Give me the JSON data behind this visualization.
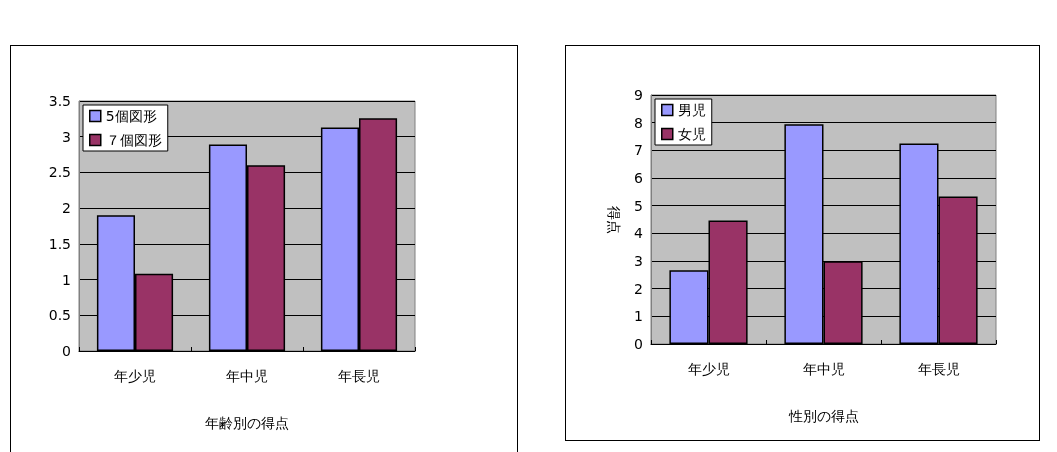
{
  "chart_data": [
    {
      "type": "bar",
      "xlabel": "年齢別の得点",
      "categories": [
        "年少児",
        "年中児",
        "年長児"
      ],
      "series": [
        {
          "name": "5個図形",
          "color": "#9999ff",
          "values": [
            1.9,
            2.89,
            3.13
          ]
        },
        {
          "name": "７個図形",
          "color": "#993366",
          "values": [
            1.08,
            2.6,
            3.26
          ]
        }
      ],
      "ylim": [
        0,
        3.5
      ],
      "yticks": [
        0,
        0.5,
        1,
        1.5,
        2,
        2.5,
        3,
        3.5
      ],
      "grid": "y",
      "legend": "top left"
    },
    {
      "type": "bar",
      "xlabel": "性別の得点",
      "ylabel": "得点",
      "categories": [
        "年少児",
        "年中児",
        "年長児"
      ],
      "series": [
        {
          "name": "男児",
          "color": "#9999ff",
          "values": [
            2.67,
            7.94,
            7.25
          ]
        },
        {
          "name": "女児",
          "color": "#993366",
          "values": [
            4.46,
            2.99,
            5.33
          ]
        }
      ],
      "ylim": [
        0,
        9
      ],
      "yticks": [
        0,
        1,
        2,
        3,
        4,
        5,
        6,
        7,
        8,
        9
      ],
      "grid": "y",
      "legend": "top left"
    }
  ]
}
